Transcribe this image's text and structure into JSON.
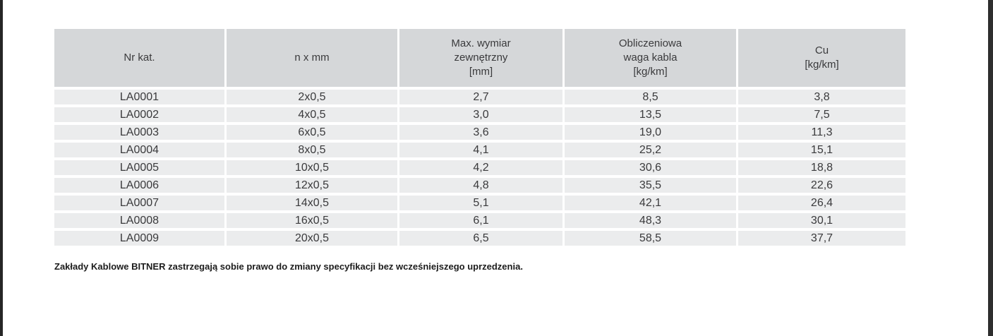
{
  "colors": {
    "header_bg": "#d5d7d9",
    "row_bg": "#ebeced",
    "text": "#3a3a3c",
    "scan_edge": "#2e2e2e"
  },
  "table": {
    "headers": [
      "Nr kat.",
      "n x mm",
      "Max. wymiar\nzewnętrzny\n[mm]",
      "Obliczeniowa\nwaga kabla\n[kg/km]",
      "Cu\n[kg/km]"
    ],
    "rows": [
      [
        "LA0001",
        "2x0,5",
        "2,7",
        "8,5",
        "3,8"
      ],
      [
        "LA0002",
        "4x0,5",
        "3,0",
        "13,5",
        "7,5"
      ],
      [
        "LA0003",
        "6x0,5",
        "3,6",
        "19,0",
        "11,3"
      ],
      [
        "LA0004",
        "8x0,5",
        "4,1",
        "25,2",
        "15,1"
      ],
      [
        "LA0005",
        "10x0,5",
        "4,2",
        "30,6",
        "18,8"
      ],
      [
        "LA0006",
        "12x0,5",
        "4,8",
        "35,5",
        "22,6"
      ],
      [
        "LA0007",
        "14x0,5",
        "5,1",
        "42,1",
        "26,4"
      ],
      [
        "LA0008",
        "16x0,5",
        "6,1",
        "48,3",
        "30,1"
      ],
      [
        "LA0009",
        "20x0,5",
        "6,5",
        "58,5",
        "37,7"
      ]
    ]
  },
  "footer": {
    "note": "Zakłady Kablowe BITNER zastrzegają sobie prawo do zmiany specyfikacji bez wcześniejszego uprzedzenia."
  }
}
